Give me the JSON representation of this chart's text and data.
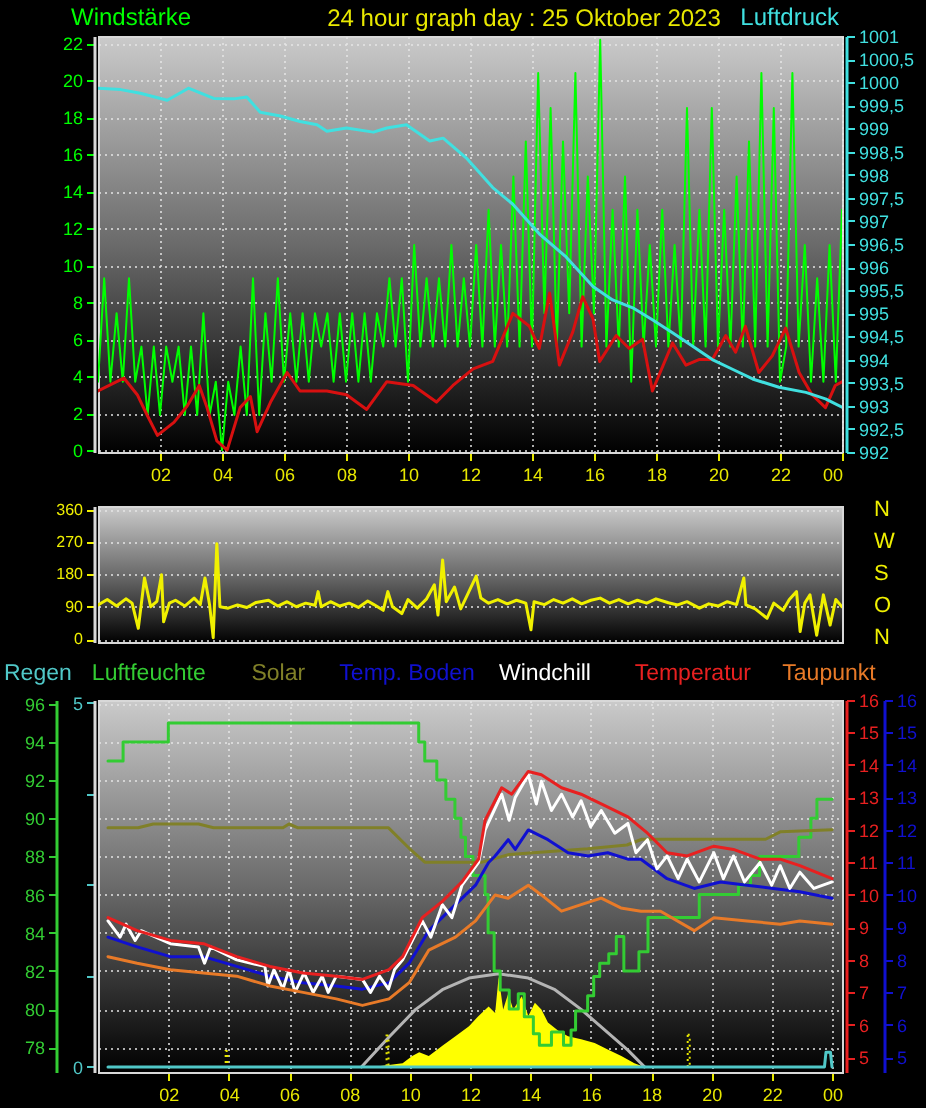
{
  "chart_data": [
    {
      "type": "line",
      "title": "24 hour graph day : 25 Oktober 2023",
      "ylabel": "Windstärke",
      "y2label": "Luftdruck",
      "xlim": [
        "2023-10-25T00:00",
        "2023-10-26T00:00"
      ],
      "xticks": [
        {
          "value": "2023-10-25T02:00",
          "label": "02"
        },
        {
          "value": "2023-10-25T04:00",
          "label": "04"
        },
        {
          "value": "2023-10-25T06:00",
          "label": "06"
        },
        {
          "value": "2023-10-25T08:00",
          "label": "08"
        },
        {
          "value": "2023-10-25T10:00",
          "label": "10"
        },
        {
          "value": "2023-10-25T12:00",
          "label": "12"
        },
        {
          "value": "2023-10-25T14:00",
          "label": "14"
        },
        {
          "value": "2023-10-25T16:00",
          "label": "16"
        },
        {
          "value": "2023-10-25T18:00",
          "label": "18"
        },
        {
          "value": "2023-10-25T20:00",
          "label": "20"
        },
        {
          "value": "2023-10-25T22:00",
          "label": "22"
        },
        {
          "value": "2023-10-26T00:00",
          "label": "00"
        }
      ],
      "ylim": [
        -0.1,
        22.4
      ],
      "yticks": [
        0,
        2,
        4,
        6,
        8,
        10,
        12,
        14,
        16,
        18,
        20,
        22
      ],
      "y2lim": [
        992,
        1001
      ],
      "y2ticks": [
        992,
        {
          "value": 992.5,
          "label": "992,5"
        },
        993,
        {
          "value": 993.5,
          "label": "993,5"
        },
        994,
        {
          "value": 994.5,
          "label": "994,5"
        },
        995,
        {
          "value": 995.5,
          "label": "995,5"
        },
        996,
        {
          "value": 996.5,
          "label": "996,5"
        },
        997,
        {
          "value": 997.5,
          "label": "997,5"
        },
        998,
        {
          "value": 998.5,
          "label": "998,5"
        },
        999,
        {
          "value": 999.5,
          "label": "999,5"
        },
        1000,
        {
          "value": 1000.5,
          "label": "1000,5"
        },
        1001
      ],
      "grid": true,
      "series": [
        {
          "color": "#00ff00",
          "x": [
            "2023-10-25T00:00",
            "2023-10-25T00:12",
            "2023-10-25T00:24",
            "2023-10-25T00:36",
            "2023-10-25T00:48",
            "2023-10-25T01:00",
            "2023-10-25T01:12",
            "2023-10-25T01:24",
            "2023-10-25T01:36",
            "2023-10-25T01:48",
            "2023-10-25T02:00",
            "2023-10-25T02:12",
            "2023-10-25T02:24",
            "2023-10-25T02:36",
            "2023-10-25T02:48",
            "2023-10-25T03:00",
            "2023-10-25T03:12",
            "2023-10-25T03:24",
            "2023-10-25T03:36",
            "2023-10-25T03:48",
            "2023-10-25T04:00",
            "2023-10-25T04:12",
            "2023-10-25T04:24",
            "2023-10-25T04:36",
            "2023-10-25T04:48",
            "2023-10-25T05:00",
            "2023-10-25T05:12",
            "2023-10-25T05:24",
            "2023-10-25T05:36",
            "2023-10-25T05:48",
            "2023-10-25T06:00",
            "2023-10-25T06:12",
            "2023-10-25T06:24",
            "2023-10-25T06:36",
            "2023-10-25T06:48",
            "2023-10-25T07:00",
            "2023-10-25T07:12",
            "2023-10-25T07:24",
            "2023-10-25T07:36",
            "2023-10-25T07:48",
            "2023-10-25T08:00",
            "2023-10-25T08:12",
            "2023-10-25T08:24",
            "2023-10-25T08:36",
            "2023-10-25T08:48",
            "2023-10-25T09:00",
            "2023-10-25T09:12",
            "2023-10-25T09:24",
            "2023-10-25T09:36",
            "2023-10-25T09:48",
            "2023-10-25T10:00",
            "2023-10-25T10:12",
            "2023-10-25T10:24",
            "2023-10-25T10:36",
            "2023-10-25T10:48",
            "2023-10-25T11:00",
            "2023-10-25T11:12",
            "2023-10-25T11:24",
            "2023-10-25T11:36",
            "2023-10-25T11:48",
            "2023-10-25T12:00",
            "2023-10-25T12:12",
            "2023-10-25T12:24",
            "2023-10-25T12:36",
            "2023-10-25T12:48",
            "2023-10-25T13:00",
            "2023-10-25T13:12",
            "2023-10-25T13:24",
            "2023-10-25T13:36",
            "2023-10-25T13:48",
            "2023-10-25T14:00",
            "2023-10-25T14:12",
            "2023-10-25T14:24",
            "2023-10-25T14:36",
            "2023-10-25T14:48",
            "2023-10-25T15:00",
            "2023-10-25T15:12",
            "2023-10-25T15:24",
            "2023-10-25T15:36",
            "2023-10-25T15:48",
            "2023-10-25T16:00",
            "2023-10-25T16:12",
            "2023-10-25T16:24",
            "2023-10-25T16:36",
            "2023-10-25T16:48",
            "2023-10-25T17:00",
            "2023-10-25T17:12",
            "2023-10-25T17:24",
            "2023-10-25T17:36",
            "2023-10-25T17:48",
            "2023-10-25T18:00",
            "2023-10-25T18:12",
            "2023-10-25T18:24",
            "2023-10-25T18:36",
            "2023-10-25T18:48",
            "2023-10-25T19:00",
            "2023-10-25T19:12",
            "2023-10-25T19:24",
            "2023-10-25T19:36",
            "2023-10-25T19:48",
            "2023-10-25T20:00",
            "2023-10-25T20:12",
            "2023-10-25T20:24",
            "2023-10-25T20:36",
            "2023-10-25T20:48",
            "2023-10-25T21:00",
            "2023-10-25T21:12",
            "2023-10-25T21:24",
            "2023-10-25T21:36",
            "2023-10-25T21:48",
            "2023-10-25T22:00",
            "2023-10-25T22:12",
            "2023-10-25T22:24",
            "2023-10-25T22:36",
            "2023-10-25T22:48",
            "2023-10-25T23:00",
            "2023-10-25T23:12",
            "2023-10-25T23:24",
            "2023-10-25T23:36",
            "2023-10-25T23:48",
            "2023-10-26T00:00"
          ],
          "values": [
            3.7,
            9.3,
            3.7,
            7.4,
            3.7,
            9.3,
            3.7,
            5.6,
            1.9,
            5.6,
            1.9,
            5.6,
            3.7,
            5.6,
            1.9,
            5.6,
            1.9,
            7.4,
            1.9,
            3.7,
            0,
            3.7,
            1.9,
            5.6,
            1.9,
            9.3,
            1.9,
            7.4,
            3.7,
            9.3,
            3.7,
            7.4,
            3.7,
            7.4,
            3.7,
            7.4,
            5.6,
            7.4,
            3.7,
            7.4,
            3.7,
            7.4,
            3.7,
            7.4,
            3.7,
            7.4,
            5.6,
            9.3,
            5.6,
            9.3,
            3.7,
            11.1,
            5.6,
            9.3,
            5.6,
            9.3,
            5.6,
            11.1,
            5.6,
            9.3,
            5.6,
            11.1,
            5.6,
            13.0,
            5.6,
            11.1,
            5.6,
            14.8,
            5.6,
            16.7,
            5.6,
            20.4,
            7.4,
            18.5,
            5.6,
            16.7,
            7.4,
            20.4,
            5.6,
            14.8,
            7.4,
            22.2,
            5.6,
            13.0,
            5.6,
            14.8,
            3.7,
            13.0,
            5.6,
            11.1,
            5.6,
            13.0,
            5.6,
            11.1,
            5.6,
            18.5,
            5.6,
            13.0,
            5.6,
            18.5,
            5.6,
            13.0,
            5.6,
            14.8,
            5.6,
            16.7,
            5.6,
            20.4,
            5.6,
            18.5,
            3.7,
            5.6,
            20.4,
            5.6,
            11.1,
            3.7,
            9.3,
            3.7,
            11.1,
            3.7,
            13.0
          ]
        },
        {
          "color": "#d81010",
          "x": [
            "2023-10-25T00:00",
            "2023-10-25T00:50",
            "2023-10-25T01:16",
            "2023-10-25T01:35",
            "2023-10-25T01:55",
            "2023-10-25T02:27",
            "2023-10-25T02:53",
            "2023-10-25T03:16",
            "2023-10-25T03:31",
            "2023-10-25T03:50",
            "2023-10-25T04:10",
            "2023-10-25T04:35",
            "2023-10-25T04:55",
            "2023-10-25T05:08",
            "2023-10-25T05:34",
            "2023-10-25T06:06",
            "2023-10-25T06:31",
            "2023-10-25T07:23",
            "2023-10-25T08:01",
            "2023-10-25T08:40",
            "2023-10-25T09:19",
            "2023-10-25T10:10",
            "2023-10-25T10:55",
            "2023-10-25T11:27",
            "2023-10-25T12:06",
            "2023-10-25T12:44",
            "2023-10-25T13:23",
            "2023-10-25T13:55",
            "2023-10-25T14:14",
            "2023-10-25T14:34",
            "2023-10-25T14:53",
            "2023-10-25T15:19",
            "2023-10-25T15:38",
            "2023-10-25T15:58",
            "2023-10-25T16:11",
            "2023-10-25T16:43",
            "2023-10-25T17:08",
            "2023-10-25T17:34",
            "2023-10-25T17:53",
            "2023-10-25T18:32",
            "2023-10-25T18:58",
            "2023-10-25T19:23",
            "2023-10-25T19:49",
            "2023-10-25T20:15",
            "2023-10-25T20:34",
            "2023-10-25T20:53",
            "2023-10-25T21:19",
            "2023-10-25T21:45",
            "2023-10-25T22:11",
            "2023-10-25T22:37",
            "2023-10-25T23:02",
            "2023-10-25T23:28",
            "2023-10-25T23:47",
            "2023-10-26T00:00"
          ],
          "values": [
            3.2,
            3.9,
            3.0,
            1.9,
            0.8,
            1.5,
            2.4,
            3.5,
            2.3,
            0.5,
            0,
            2.3,
            2.9,
            1.0,
            2.6,
            4.2,
            3.2,
            3.2,
            3.0,
            2.2,
            3.7,
            3.5,
            2.6,
            3.5,
            4.4,
            4.8,
            7.4,
            6.7,
            5.5,
            8.5,
            4.6,
            6.4,
            8.3,
            7.1,
            4.8,
            6.2,
            5.5,
            6.0,
            3.2,
            5.8,
            4.6,
            4.9,
            4.9,
            6.2,
            5.3,
            6.7,
            4.2,
            5.1,
            6.6,
            4.2,
            3.0,
            2.3,
            3.5,
            3.7
          ]
        },
        {
          "color": "#40e0e0",
          "axis": "y2",
          "x": [
            "2023-10-25T00:00",
            "2023-10-25T00:44",
            "2023-10-25T01:22",
            "2023-10-25T02:14",
            "2023-10-25T02:55",
            "2023-10-25T03:44",
            "2023-10-25T04:23",
            "2023-10-25T04:48",
            "2023-10-25T05:14",
            "2023-10-25T05:53",
            "2023-10-25T06:31",
            "2023-10-25T07:04",
            "2023-10-25T07:23",
            "2023-10-25T08:01",
            "2023-10-25T08:53",
            "2023-10-25T09:19",
            "2023-10-25T09:57",
            "2023-10-25T10:42",
            "2023-10-25T11:08",
            "2023-10-25T11:53",
            "2023-10-25T12:44",
            "2023-10-25T13:23",
            "2023-10-25T14:14",
            "2023-10-25T15:06",
            "2023-10-25T15:58",
            "2023-10-25T16:36",
            "2023-10-25T17:15",
            "2023-10-25T17:53",
            "2023-10-25T18:32",
            "2023-10-25T19:11",
            "2023-10-25T19:49",
            "2023-10-25T20:28",
            "2023-10-25T21:07",
            "2023-10-25T21:58",
            "2023-10-25T22:50",
            "2023-10-25T23:28",
            "2023-10-26T00:00"
          ],
          "values": [
            999.87,
            999.84,
            999.76,
            999.61,
            999.87,
            999.65,
            999.64,
            999.68,
            999.35,
            999.27,
            999.15,
            999.08,
            998.94,
            999.01,
            998.92,
            999.01,
            999.08,
            998.73,
            998.79,
            998.36,
            997.72,
            997.36,
            996.72,
            996.22,
            995.58,
            995.29,
            995.12,
            994.86,
            994.58,
            994.29,
            994.0,
            993.79,
            993.58,
            993.4,
            993.29,
            993.15,
            992.97
          ]
        }
      ]
    },
    {
      "type": "line",
      "xlim": [
        "2023-10-25T00:00",
        "2023-10-26T00:00"
      ],
      "ylim": [
        -8,
        370
      ],
      "yticks": [
        0,
        90,
        180,
        270,
        360
      ],
      "y2_categories": [
        "N",
        "W",
        "S",
        "O",
        "N"
      ],
      "tick_labels": "y",
      "grid": "y",
      "series": [
        {
          "color": "#f0f000",
          "x": [
            "2023-10-25T00:00",
            "2023-10-25T00:18",
            "2023-10-25T00:36",
            "2023-10-25T00:54",
            "2023-10-25T01:06",
            "2023-10-25T01:18",
            "2023-10-25T01:30",
            "2023-10-25T01:42",
            "2023-10-25T01:54",
            "2023-10-25T02:03",
            "2023-10-25T02:07",
            "2023-10-25T02:18",
            "2023-10-25T02:30",
            "2023-10-25T02:48",
            "2023-10-25T03:06",
            "2023-10-25T03:18",
            "2023-10-25T03:27",
            "2023-10-25T03:36",
            "2023-10-25T03:43",
            "2023-10-25T03:50",
            "2023-10-25T03:56",
            "2023-10-25T04:12",
            "2023-10-25T04:30",
            "2023-10-25T04:48",
            "2023-10-25T05:06",
            "2023-10-25T05:30",
            "2023-10-25T05:48",
            "2023-10-25T06:06",
            "2023-10-25T06:24",
            "2023-10-25T06:42",
            "2023-10-25T07:00",
            "2023-10-25T07:06",
            "2023-10-25T07:12",
            "2023-10-25T07:30",
            "2023-10-25T07:48",
            "2023-10-25T08:06",
            "2023-10-25T08:24",
            "2023-10-25T08:42",
            "2023-10-25T08:54",
            "2023-10-25T09:12",
            "2023-10-25T09:21",
            "2023-10-25T09:30",
            "2023-10-25T09:48",
            "2023-10-25T10:00",
            "2023-10-25T10:18",
            "2023-10-25T10:36",
            "2023-10-25T10:51",
            "2023-10-25T10:58",
            "2023-10-25T11:07",
            "2023-10-25T11:14",
            "2023-10-25T11:30",
            "2023-10-25T11:42",
            "2023-10-25T11:54",
            "2023-10-25T12:12",
            "2023-10-25T12:21",
            "2023-10-25T12:36",
            "2023-10-25T12:54",
            "2023-10-25T13:12",
            "2023-10-25T13:30",
            "2023-10-25T13:48",
            "2023-10-25T13:58",
            "2023-10-25T14:04",
            "2023-10-25T14:24",
            "2023-10-25T14:42",
            "2023-10-25T15:00",
            "2023-10-25T15:18",
            "2023-10-25T15:36",
            "2023-10-25T15:54",
            "2023-10-25T16:12",
            "2023-10-25T16:30",
            "2023-10-25T16:48",
            "2023-10-25T17:06",
            "2023-10-25T17:24",
            "2023-10-25T17:42",
            "2023-10-25T18:00",
            "2023-10-25T18:24",
            "2023-10-25T18:42",
            "2023-10-25T19:00",
            "2023-10-25T19:24",
            "2023-10-25T19:42",
            "2023-10-25T20:00",
            "2023-10-25T20:18",
            "2023-10-25T20:36",
            "2023-10-25T20:50",
            "2023-10-25T20:54",
            "2023-10-25T21:12",
            "2023-10-25T21:35",
            "2023-10-25T21:48",
            "2023-10-25T22:06",
            "2023-10-25T22:18",
            "2023-10-25T22:32",
            "2023-10-25T22:39",
            "2023-10-25T22:48",
            "2023-10-25T22:58",
            "2023-10-25T23:11",
            "2023-10-25T23:24",
            "2023-10-25T23:37",
            "2023-10-25T23:48",
            "2023-10-26T00:00"
          ],
          "values": [
            95,
            110,
            92,
            112,
            100,
            30,
            170,
            90,
            105,
            179,
            48,
            100,
            108,
            92,
            114,
            96,
            170,
            95,
            4,
            265,
            90,
            86,
            95,
            88,
            102,
            108,
            92,
            104,
            90,
            100,
            94,
            132,
            90,
            104,
            92,
            100,
            88,
            106,
            96,
            80,
            132,
            90,
            71,
            110,
            86,
            112,
            151,
            67,
            220,
            104,
            145,
            84,
            120,
            175,
            114,
            100,
            110,
            98,
            108,
            100,
            26,
            104,
            96,
            110,
            100,
            112,
            98,
            108,
            114,
            100,
            110,
            98,
            108,
            100,
            112,
            101,
            95,
            104,
            86,
            98,
            92,
            104,
            96,
            170,
            95,
            84,
            58,
            100,
            80,
            110,
            132,
            21,
            100,
            123,
            11,
            123,
            39,
            110,
            90
          ]
        }
      ]
    },
    {
      "type": "line",
      "legend": "top",
      "xlim": [
        "2023-10-25T00:00",
        "2023-10-26T00:00"
      ],
      "tick_labels": "y",
      "grid": "x",
      "ylim": [
        -0.07,
        5.04
      ],
      "yticks": [
        0,
        {
          "value": 1.25,
          "label": null
        },
        {
          "value": 2.5,
          "label": null
        },
        {
          "value": 3.75,
          "label": null
        },
        5
      ],
      "series": [
        {
          "type": "area",
          "color": "#ffff00",
          "x": [
            "2023-10-25T08:46",
            "2023-10-25T09:46",
            "2023-10-25T10:05",
            "2023-10-25T10:19",
            "2023-10-25T10:38",
            "2023-10-25T11:05",
            "2023-10-25T11:31",
            "2023-10-25T11:58",
            "2023-10-25T12:17",
            "2023-10-25T12:37",
            "2023-10-25T12:50",
            "2023-10-25T12:57",
            "2023-10-25T13:06",
            "2023-10-25T13:16",
            "2023-10-25T13:26",
            "2023-10-25T13:43",
            "2023-10-25T13:56",
            "2023-10-25T14:09",
            "2023-10-25T14:22",
            "2023-10-25T14:35",
            "2023-10-25T14:55",
            "2023-10-25T15:15",
            "2023-10-25T15:41",
            "2023-10-25T16:08",
            "2023-10-25T16:34",
            "2023-10-25T17:01",
            "2023-10-25T17:27",
            "2023-10-25T17:47"
          ],
          "values": [
            0,
            0.05,
            0.15,
            0.2,
            0.15,
            0.29,
            0.42,
            0.56,
            0.7,
            0.83,
            0.74,
            1.24,
            0.79,
            1.01,
            0.79,
            0.97,
            0.7,
            0.88,
            0.79,
            0.61,
            0.5,
            0.42,
            0.38,
            0.33,
            0.24,
            0.15,
            0.05,
            0
          ]
        },
        {
          "color": "#b4b4b4",
          "x": [
            "2023-10-25T08:24",
            "2023-10-25T09:19",
            "2023-10-25T10:12",
            "2023-10-25T11:05",
            "2023-10-25T11:58",
            "2023-10-25T12:57",
            "2023-10-25T13:56",
            "2023-10-25T14:49",
            "2023-10-25T15:41",
            "2023-10-25T16:34",
            "2023-10-25T17:14",
            "2023-10-25T17:47"
          ],
          "values": [
            0,
            0.41,
            0.79,
            1.06,
            1.22,
            1.28,
            1.22,
            1.06,
            0.79,
            0.47,
            0.23,
            0
          ]
        },
        {
          "type": "bar",
          "color": "#e8e800",
          "line_style": "dotted",
          "x": [
            "2023-10-25T03:56",
            "2023-10-25T09:16",
            "2023-10-25T19:15"
          ],
          "values": [
            0.22,
            0.43,
            0.44
          ]
        },
        {
          "name": "Regen",
          "color": "#50c8c8",
          "x": [
            "2023-10-25T00:00",
            "2023-10-25T23:45",
            "2023-10-25T23:48",
            "2023-10-25T23:57",
            "2023-10-26T00:00"
          ],
          "values": [
            0,
            0,
            0.2,
            0.2,
            0
          ]
        }
      ]
    },
    {
      "type": "line",
      "legend": "top",
      "xlim": [
        "2023-10-25T00:00",
        "2023-10-26T00:00"
      ],
      "xticks": [
        {
          "value": "2023-10-25T02:00",
          "label": "02"
        },
        {
          "value": "2023-10-25T04:00",
          "label": "04"
        },
        {
          "value": "2023-10-25T06:00",
          "label": "06"
        },
        {
          "value": "2023-10-25T08:00",
          "label": "08"
        },
        {
          "value": "2023-10-25T10:00",
          "label": "10"
        },
        {
          "value": "2023-10-25T12:00",
          "label": "12"
        },
        {
          "value": "2023-10-25T14:00",
          "label": "14"
        },
        {
          "value": "2023-10-25T16:00",
          "label": "16"
        },
        {
          "value": "2023-10-25T18:00",
          "label": "18"
        },
        {
          "value": "2023-10-25T20:00",
          "label": "20"
        },
        {
          "value": "2023-10-25T22:00",
          "label": "22"
        },
        {
          "value": "2023-10-26T00:00",
          "label": "00"
        }
      ],
      "ylim": [
        76.7,
        96.2
      ],
      "yticks": [
        78,
        80,
        82,
        84,
        86,
        88,
        90,
        92,
        94,
        96
      ],
      "y2lim": [
        4.55,
        16
      ],
      "y2ticks": [
        5,
        6,
        7,
        8,
        9,
        10,
        11,
        12,
        13,
        14,
        15,
        16
      ],
      "y3lim": [
        4.55,
        16
      ],
      "y3ticks": [
        5,
        6,
        7,
        8,
        9,
        10,
        11,
        12,
        13,
        14,
        15,
        16
      ],
      "grid": "y",
      "series": [
        {
          "name": "Luftfeuchte",
          "color": "#33cc33",
          "type": "step",
          "x": [
            "2023-10-25T00:00",
            "2023-10-25T00:30",
            "2023-10-25T02:00",
            "2023-10-25T10:18",
            "2023-10-25T10:30",
            "2023-10-25T10:54",
            "2023-10-25T11:12",
            "2023-10-25T11:30",
            "2023-10-25T11:42",
            "2023-10-25T11:51",
            "2023-10-25T12:06",
            "2023-10-25T12:30",
            "2023-10-25T12:36",
            "2023-10-25T12:48",
            "2023-10-25T13:00",
            "2023-10-25T13:18",
            "2023-10-25T13:36",
            "2023-10-25T13:48",
            "2023-10-25T14:06",
            "2023-10-25T14:18",
            "2023-10-25T14:42",
            "2023-10-25T15:06",
            "2023-10-25T15:21",
            "2023-10-25T15:30",
            "2023-10-25T15:54",
            "2023-10-25T16:06",
            "2023-10-25T16:18",
            "2023-10-25T16:36",
            "2023-10-25T16:51",
            "2023-10-25T17:06",
            "2023-10-25T17:36",
            "2023-10-25T17:54",
            "2023-10-25T19:36",
            "2023-10-25T20:54",
            "2023-10-25T21:18",
            "2023-10-25T21:36",
            "2023-10-25T22:54",
            "2023-10-25T23:18",
            "2023-10-25T23:30",
            "2023-10-26T00:00"
          ],
          "values": [
            93.0,
            94.0,
            95.0,
            94.0,
            93.0,
            92.0,
            91.0,
            90.0,
            89.0,
            88.0,
            87.0,
            86.0,
            84.0,
            82.0,
            81.0,
            80.0,
            80.8,
            79.6,
            78.7,
            78.1,
            78.8,
            78.1,
            78.9,
            79.9,
            80.7,
            81.7,
            82.4,
            82.9,
            83.8,
            82.0,
            83.0,
            84.8,
            86.0,
            86.5,
            87.0,
            88.0,
            89.0,
            90.0,
            91.0,
            91.0
          ]
        },
        {
          "name": "Solar",
          "color": "#808028",
          "x": [
            "2023-10-25T00:00",
            "2023-10-25T01:00",
            "2023-10-25T01:30",
            "2023-10-25T03:00",
            "2023-10-25T03:30",
            "2023-10-25T05:48",
            "2023-10-25T06:00",
            "2023-10-25T06:18",
            "2023-10-25T09:18",
            "2023-10-25T10:00",
            "2023-10-25T10:30",
            "2023-10-25T12:24",
            "2023-10-25T13:18",
            "2023-10-25T15:54",
            "2023-10-25T17:12",
            "2023-10-25T17:42",
            "2023-10-25T21:48",
            "2023-10-25T22:18",
            "2023-10-26T00:00"
          ],
          "values": [
            89.5,
            89.5,
            89.7,
            89.7,
            89.5,
            89.5,
            89.7,
            89.5,
            89.5,
            88.4,
            87.7,
            87.7,
            88.1,
            88.4,
            88.6,
            88.9,
            88.9,
            89.3,
            89.4
          ]
        },
        {
          "name": "Temp. Boden",
          "color": "#1010d0",
          "axis": "y3",
          "x": [
            "2023-10-25T00:00",
            "2023-10-25T00:58",
            "2023-10-25T02:04",
            "2023-10-25T03:10",
            "2023-10-25T04:16",
            "2023-10-25T05:22",
            "2023-10-25T06:28",
            "2023-10-25T07:34",
            "2023-10-25T08:26",
            "2023-10-25T09:19",
            "2023-10-25T09:59",
            "2023-10-25T10:38",
            "2023-10-25T11:31",
            "2023-10-25T12:11",
            "2023-10-25T12:37",
            "2023-10-25T12:50",
            "2023-10-25T13:16",
            "2023-10-25T13:30",
            "2023-10-25T13:56",
            "2023-10-25T14:35",
            "2023-10-25T15:15",
            "2023-10-25T15:55",
            "2023-10-25T16:34",
            "2023-10-25T17:14",
            "2023-10-25T17:40",
            "2023-10-25T18:32",
            "2023-10-25T19:26",
            "2023-10-25T20:18",
            "2023-10-25T21:11",
            "2023-10-25T22:03",
            "2023-10-25T22:56",
            "2023-10-26T00:00"
          ],
          "values": [
            8.7,
            8.4,
            8.1,
            8.1,
            7.8,
            7.5,
            7.3,
            7.2,
            7.1,
            7.3,
            7.9,
            8.9,
            9.7,
            10.3,
            11.0,
            11.2,
            11.7,
            11.4,
            12.0,
            11.7,
            11.3,
            11.2,
            11.3,
            11.1,
            11.1,
            10.5,
            10.2,
            10.4,
            10.3,
            10.2,
            10.1,
            9.9
          ]
        },
        {
          "name": "Windchill",
          "color": "#ffffff",
          "axis": "y2",
          "x": [
            "2023-10-25T00:00",
            "2023-10-25T00:24",
            "2023-10-25T00:36",
            "2023-10-25T00:54",
            "2023-10-25T01:06",
            "2023-10-25T02:04",
            "2023-10-25T03:00",
            "2023-10-25T03:12",
            "2023-10-25T03:24",
            "2023-10-25T04:16",
            "2023-10-25T05:12",
            "2023-10-25T05:18",
            "2023-10-25T05:30",
            "2023-10-25T05:48",
            "2023-10-25T06:00",
            "2023-10-25T06:12",
            "2023-10-25T06:30",
            "2023-10-25T06:48",
            "2023-10-25T07:06",
            "2023-10-25T07:18",
            "2023-10-25T07:34",
            "2023-10-25T08:26",
            "2023-10-25T08:42",
            "2023-10-25T09:00",
            "2023-10-25T09:18",
            "2023-10-25T09:30",
            "2023-10-25T09:46",
            "2023-10-25T10:25",
            "2023-10-25T10:42",
            "2023-10-25T11:05",
            "2023-10-25T11:24",
            "2023-10-25T11:44",
            "2023-10-25T12:17",
            "2023-10-25T12:30",
            "2023-10-25T13:03",
            "2023-10-25T13:18",
            "2023-10-25T13:30",
            "2023-10-25T13:56",
            "2023-10-25T14:12",
            "2023-10-25T14:22",
            "2023-10-25T14:42",
            "2023-10-25T15:02",
            "2023-10-25T15:24",
            "2023-10-25T15:41",
            "2023-10-25T16:00",
            "2023-10-25T16:21",
            "2023-10-25T16:48",
            "2023-10-25T17:14",
            "2023-10-25T17:30",
            "2023-10-25T17:53",
            "2023-10-25T18:12",
            "2023-10-25T18:32",
            "2023-10-25T18:54",
            "2023-10-25T19:12",
            "2023-10-25T19:36",
            "2023-10-25T20:05",
            "2023-10-25T20:24",
            "2023-10-25T20:44",
            "2023-10-25T21:06",
            "2023-10-25T21:37",
            "2023-10-25T22:00",
            "2023-10-25T22:17",
            "2023-10-25T22:36",
            "2023-10-25T22:56",
            "2023-10-25T23:24",
            "2023-10-26T00:00"
          ],
          "values": [
            9.2,
            8.7,
            9.1,
            8.6,
            8.9,
            8.5,
            8.4,
            7.9,
            8.4,
            8.0,
            7.8,
            7.2,
            7.7,
            7.1,
            7.7,
            7.0,
            7.6,
            7.0,
            7.5,
            7.0,
            7.5,
            7.4,
            7.0,
            7.5,
            7.1,
            7.7,
            8.0,
            9.2,
            8.7,
            9.7,
            9.3,
            10.3,
            11.0,
            12.0,
            13.1,
            12.3,
            13.0,
            13.7,
            12.8,
            13.5,
            12.6,
            13.1,
            12.4,
            12.9,
            12.1,
            12.6,
            11.9,
            12.2,
            11.3,
            11.7,
            10.8,
            11.2,
            10.5,
            11.1,
            10.4,
            11.3,
            10.5,
            11.2,
            10.4,
            11.0,
            10.3,
            10.9,
            10.2,
            10.7,
            10.2,
            10.4
          ]
        },
        {
          "name": "Temperatur",
          "color": "#e82020",
          "axis": "y2",
          "x": [
            "2023-10-25T00:00",
            "2023-10-25T00:58",
            "2023-10-25T02:04",
            "2023-10-25T03:10",
            "2023-10-25T04:16",
            "2023-10-25T05:22",
            "2023-10-25T06:28",
            "2023-10-25T07:34",
            "2023-10-25T08:26",
            "2023-10-25T09:19",
            "2023-10-25T09:46",
            "2023-10-25T10:25",
            "2023-10-25T11:05",
            "2023-10-25T11:44",
            "2023-10-25T12:17",
            "2023-10-25T12:30",
            "2023-10-25T13:03",
            "2023-10-25T13:23",
            "2023-10-25T13:56",
            "2023-10-25T14:22",
            "2023-10-25T15:02",
            "2023-10-25T15:41",
            "2023-10-25T16:21",
            "2023-10-25T17:14",
            "2023-10-25T17:53",
            "2023-10-25T18:32",
            "2023-10-25T19:12",
            "2023-10-25T20:05",
            "2023-10-25T20:44",
            "2023-10-25T21:37",
            "2023-10-25T22:17",
            "2023-10-25T22:56",
            "2023-10-26T00:00"
          ],
          "values": [
            9.3,
            8.9,
            8.6,
            8.5,
            8.1,
            7.8,
            7.6,
            7.5,
            7.4,
            7.7,
            8.1,
            9.3,
            9.8,
            10.4,
            11.1,
            12.3,
            13.3,
            13.1,
            13.8,
            13.7,
            13.3,
            13.1,
            12.8,
            12.4,
            11.9,
            11.3,
            11.2,
            11.5,
            11.4,
            11.1,
            11.1,
            10.9,
            10.5
          ]
        },
        {
          "name": "Taupunkt",
          "color": "#e87a28",
          "axis": "y2",
          "x": [
            "2023-10-25T00:00",
            "2023-10-25T00:58",
            "2023-10-25T02:04",
            "2023-10-25T03:10",
            "2023-10-25T04:16",
            "2023-10-25T05:22",
            "2023-10-25T06:28",
            "2023-10-25T07:34",
            "2023-10-25T08:26",
            "2023-10-25T09:19",
            "2023-10-25T09:59",
            "2023-10-25T10:38",
            "2023-10-25T11:31",
            "2023-10-25T12:11",
            "2023-10-25T12:50",
            "2023-10-25T13:16",
            "2023-10-25T13:56",
            "2023-10-25T14:22",
            "2023-10-25T15:02",
            "2023-10-25T15:41",
            "2023-10-25T16:21",
            "2023-10-25T17:00",
            "2023-10-25T17:40",
            "2023-10-25T18:19",
            "2023-10-25T19:26",
            "2023-10-25T20:05",
            "2023-10-25T21:11",
            "2023-10-25T22:17",
            "2023-10-25T22:56",
            "2023-10-26T00:00"
          ],
          "values": [
            8.1,
            7.9,
            7.7,
            7.6,
            7.5,
            7.2,
            7.0,
            6.8,
            6.6,
            6.8,
            7.3,
            8.3,
            8.7,
            9.2,
            10.0,
            9.9,
            10.3,
            10.0,
            9.5,
            9.7,
            9.9,
            9.6,
            9.5,
            9.5,
            8.9,
            9.3,
            9.2,
            9.1,
            9.2,
            9.1
          ]
        }
      ]
    }
  ]
}
